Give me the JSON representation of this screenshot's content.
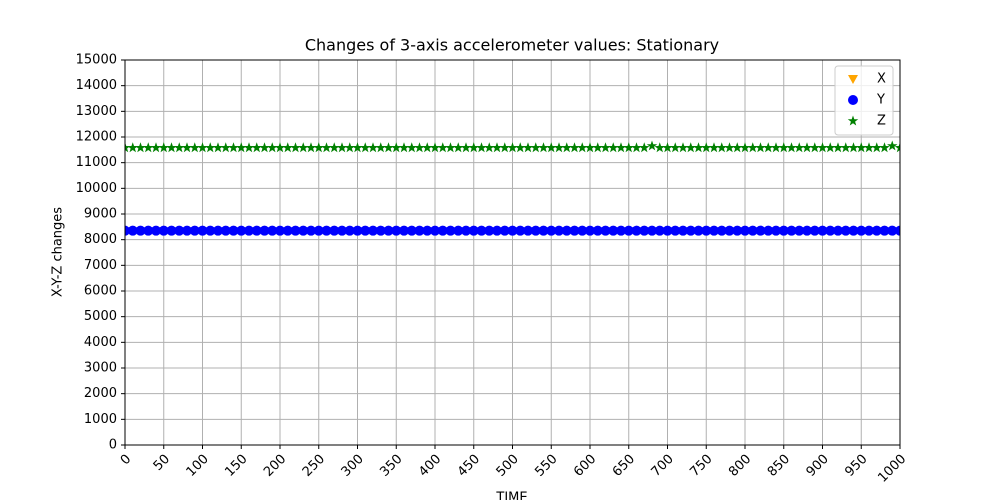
{
  "chart_data": {
    "type": "scatter",
    "title": "Changes of 3-axis accelerometer values: Stationary",
    "xlabel": "TIME",
    "ylabel": "X-Y-Z changes",
    "xlim": [
      0,
      1000
    ],
    "ylim": [
      0,
      15000
    ],
    "xticks": [
      0,
      50,
      100,
      150,
      200,
      250,
      300,
      350,
      400,
      450,
      500,
      550,
      600,
      650,
      700,
      750,
      800,
      850,
      900,
      950,
      1000
    ],
    "yticks": [
      0,
      1000,
      2000,
      3000,
      4000,
      5000,
      6000,
      7000,
      8000,
      9000,
      10000,
      11000,
      12000,
      13000,
      14000,
      15000
    ],
    "grid": true,
    "legend": "upper right",
    "x": [
      0,
      10,
      20,
      30,
      40,
      50,
      60,
      70,
      80,
      90,
      100,
      110,
      120,
      130,
      140,
      150,
      160,
      170,
      180,
      190,
      200,
      210,
      220,
      230,
      240,
      250,
      260,
      270,
      280,
      290,
      300,
      310,
      320,
      330,
      340,
      350,
      360,
      370,
      380,
      390,
      400,
      410,
      420,
      430,
      440,
      450,
      460,
      470,
      480,
      490,
      500,
      510,
      520,
      530,
      540,
      550,
      560,
      570,
      580,
      590,
      600,
      610,
      620,
      630,
      640,
      650,
      660,
      670,
      680,
      690,
      700,
      710,
      720,
      730,
      740,
      750,
      760,
      770,
      780,
      790,
      800,
      810,
      820,
      830,
      840,
      850,
      860,
      870,
      880,
      890,
      900,
      910,
      920,
      930,
      940,
      950,
      960,
      970,
      980,
      990,
      1000
    ],
    "series": [
      {
        "name": "X",
        "color": "#ffa500",
        "marker": "triangle-down",
        "values": [
          null,
          null,
          null,
          null,
          null,
          null,
          null,
          null,
          null,
          null,
          null,
          null,
          null,
          null,
          null,
          null,
          null,
          null,
          null,
          null,
          null,
          null,
          null,
          null,
          null,
          null,
          null,
          null,
          null,
          null,
          null,
          null,
          null,
          null,
          null,
          null,
          null,
          null,
          null,
          null,
          null,
          null,
          null,
          null,
          null,
          null,
          null,
          null,
          null,
          null,
          null,
          null,
          null,
          null,
          null,
          null,
          null,
          null,
          null,
          null,
          null,
          null,
          null,
          null,
          null,
          null,
          null,
          null,
          null,
          null,
          null,
          null,
          null,
          null,
          null,
          null,
          null,
          null,
          null,
          null,
          null,
          null,
          null,
          null,
          null,
          null,
          null,
          null,
          null,
          null,
          null,
          null,
          null,
          null,
          null,
          null,
          null,
          null,
          null,
          null,
          null
        ]
      },
      {
        "name": "Y",
        "color": "#0000ff",
        "marker": "circle",
        "values": [
          8350,
          8350,
          8350,
          8350,
          8350,
          8350,
          8350,
          8350,
          8350,
          8350,
          8350,
          8350,
          8350,
          8350,
          8350,
          8350,
          8350,
          8350,
          8350,
          8350,
          8350,
          8350,
          8350,
          8350,
          8350,
          8350,
          8350,
          8350,
          8350,
          8350,
          8350,
          8350,
          8350,
          8350,
          8350,
          8350,
          8350,
          8350,
          8350,
          8350,
          8350,
          8350,
          8350,
          8350,
          8350,
          8350,
          8350,
          8350,
          8350,
          8350,
          8350,
          8350,
          8350,
          8350,
          8350,
          8350,
          8350,
          8350,
          8350,
          8350,
          8350,
          8350,
          8350,
          8350,
          8350,
          8350,
          8350,
          8350,
          8350,
          8350,
          8350,
          8350,
          8350,
          8350,
          8350,
          8350,
          8350,
          8350,
          8350,
          8350,
          8350,
          8350,
          8350,
          8350,
          8350,
          8350,
          8350,
          8350,
          8350,
          8350,
          8350,
          8350,
          8350,
          8350,
          8350,
          8350,
          8350,
          8350,
          8350,
          8350,
          8350
        ]
      },
      {
        "name": "Z",
        "color": "#008000",
        "marker": "star",
        "values": [
          11580,
          11580,
          11580,
          11580,
          11580,
          11580,
          11580,
          11580,
          11580,
          11580,
          11580,
          11580,
          11580,
          11580,
          11580,
          11580,
          11580,
          11580,
          11580,
          11580,
          11580,
          11580,
          11580,
          11580,
          11580,
          11580,
          11580,
          11580,
          11580,
          11580,
          11580,
          11580,
          11580,
          11580,
          11580,
          11580,
          11580,
          11580,
          11580,
          11580,
          11580,
          11580,
          11580,
          11580,
          11580,
          11580,
          11580,
          11580,
          11580,
          11580,
          11580,
          11580,
          11580,
          11580,
          11580,
          11580,
          11580,
          11580,
          11580,
          11580,
          11580,
          11580,
          11580,
          11580,
          11580,
          11580,
          11580,
          11580,
          11650,
          11580,
          11580,
          11580,
          11580,
          11580,
          11580,
          11580,
          11580,
          11580,
          11580,
          11580,
          11580,
          11580,
          11580,
          11580,
          11580,
          11580,
          11580,
          11580,
          11580,
          11580,
          11580,
          11580,
          11580,
          11580,
          11580,
          11580,
          11580,
          11580,
          11580,
          11650,
          11580
        ]
      }
    ]
  }
}
